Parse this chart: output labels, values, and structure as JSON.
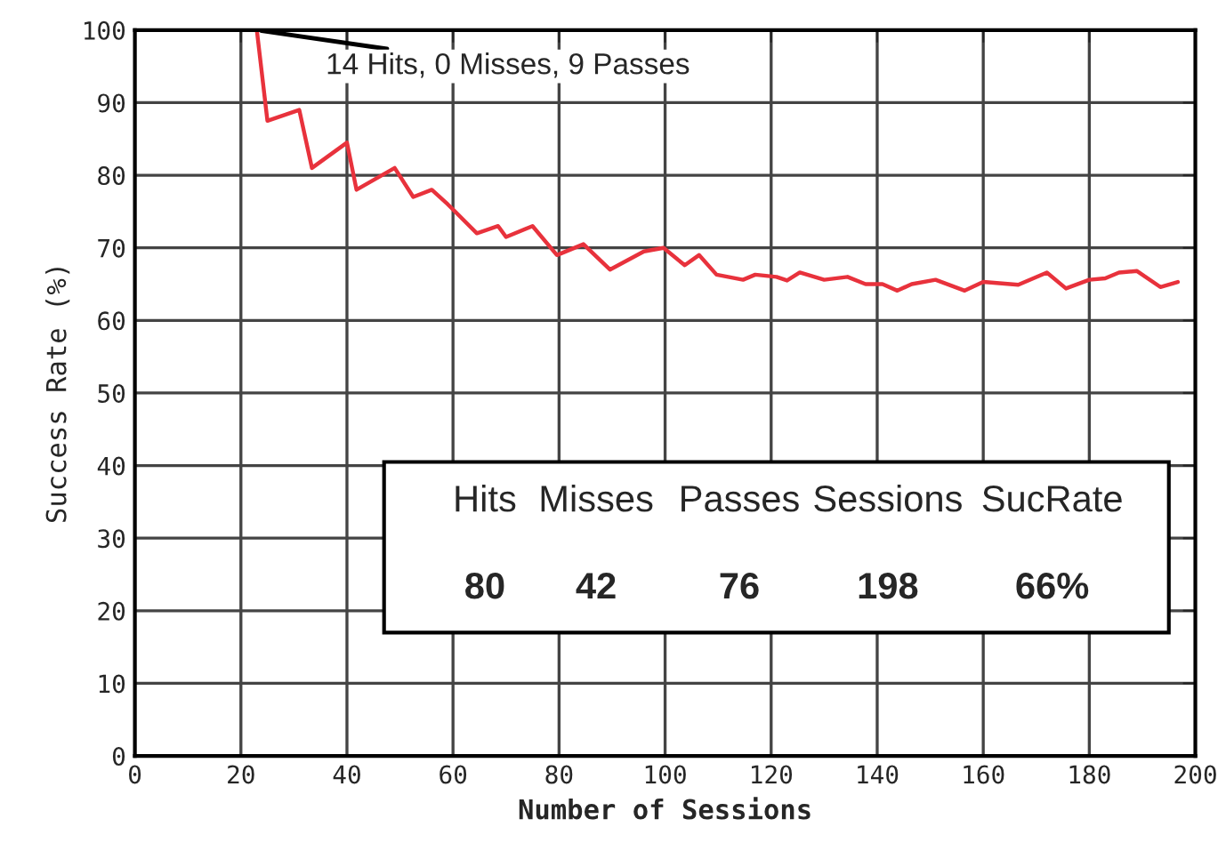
{
  "chart_data": {
    "type": "line",
    "xlabel": "Number of Sessions",
    "ylabel": "Success Rate (%)",
    "xlim": [
      0,
      200
    ],
    "ylim": [
      0,
      100
    ],
    "xticks": [
      0,
      20,
      40,
      60,
      80,
      100,
      120,
      140,
      160,
      180,
      200
    ],
    "yticks": [
      0,
      10,
      20,
      30,
      40,
      50,
      60,
      70,
      80,
      90,
      100
    ],
    "grid": true,
    "series": [
      {
        "color": "#e8323c",
        "x": [
          1,
          23,
          25,
          31,
          33.4,
          40,
          41.8,
          49,
          52.5,
          56,
          59,
          64.5,
          68.5,
          70,
          75,
          79.6,
          84.6,
          89.6,
          96,
          99.7,
          103.7,
          106.4,
          109.7,
          114.7,
          117,
          121,
          123,
          125.4,
          130,
          134.4,
          137.8,
          141,
          143.8,
          146.5,
          151,
          156.5,
          160,
          166.6,
          172,
          175.6,
          180,
          183,
          185.6,
          189,
          193.4,
          196.7
        ],
        "values": [
          100,
          100,
          87.5,
          89,
          81,
          84.5,
          78,
          81,
          77,
          78,
          76,
          72,
          73,
          71.5,
          73,
          69,
          70.5,
          67,
          69.5,
          70,
          67.6,
          69,
          66.3,
          65.6,
          66.3,
          66,
          65.5,
          66.6,
          65.6,
          66,
          65,
          65,
          64.1,
          65,
          65.6,
          64.1,
          65.3,
          64.9,
          66.6,
          64.4,
          65.6,
          65.8,
          66.6,
          66.8,
          64.6,
          65.3
        ]
      }
    ],
    "annotations": [
      {
        "text": "14 Hits, 0 Misses, 9 Passes",
        "x": 23,
        "y": 100
      },
      "Hits",
      "Misses",
      "Passes",
      "Sessions",
      "SucRate",
      "80",
      "42",
      "76",
      "198",
      "66%"
    ]
  }
}
